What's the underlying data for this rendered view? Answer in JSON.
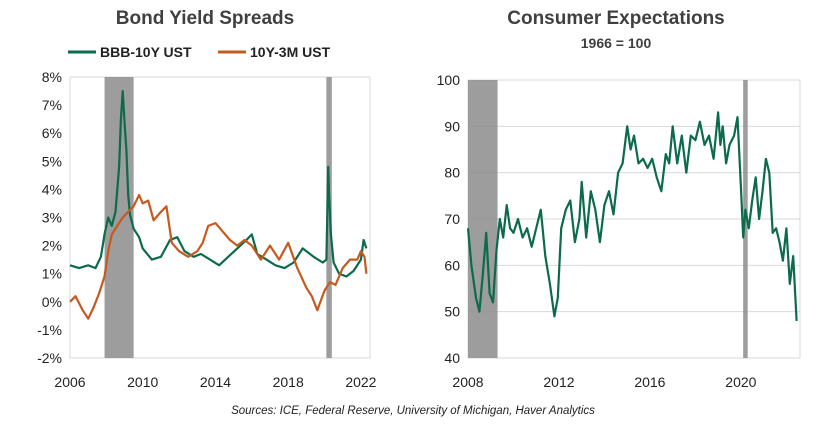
{
  "colors": {
    "bbb": "#0b6b4a",
    "spread": "#c65a1e",
    "consumer": "#0b6b4a",
    "recession": "#8c8c8c"
  },
  "source": "Sources: ICE, Federal Reserve, University of Michigan,  Haver Analytics",
  "chart_data": [
    {
      "type": "line",
      "title": "Bond Yield Spreads",
      "xlim": [
        2006,
        2022.5
      ],
      "ylim": [
        -2,
        8
      ],
      "x_ticks": [
        "2006",
        "2010",
        "2014",
        "2018",
        "2022"
      ],
      "y_ticks": [
        "8%",
        "7%",
        "6%",
        "5%",
        "4%",
        "3%",
        "2%",
        "1%",
        "0%",
        "-1%",
        "-2%"
      ],
      "y_tick_values": [
        8,
        7,
        6,
        5,
        4,
        3,
        2,
        1,
        0,
        -1,
        -2
      ],
      "x_tick_values": [
        2006,
        2010,
        2014,
        2018,
        2022
      ],
      "recessions": [
        [
          2007.9,
          2009.5
        ],
        [
          2020.1,
          2020.4
        ]
      ],
      "legend": "top",
      "series": [
        {
          "name": "BBB-10Y UST",
          "x": [
            2006.0,
            2006.5,
            2007.0,
            2007.4,
            2007.7,
            2007.9,
            2008.1,
            2008.3,
            2008.5,
            2008.7,
            2008.8,
            2008.9,
            2009.0,
            2009.1,
            2009.2,
            2009.3,
            2009.5,
            2009.8,
            2010.0,
            2010.5,
            2011.0,
            2011.5,
            2011.9,
            2012.3,
            2012.8,
            2013.2,
            2013.7,
            2014.2,
            2014.7,
            2015.2,
            2015.7,
            2016.0,
            2016.3,
            2016.8,
            2017.3,
            2017.8,
            2018.3,
            2018.8,
            2019.0,
            2019.4,
            2019.9,
            2020.1,
            2020.2,
            2020.25,
            2020.35,
            2020.5,
            2020.8,
            2021.2,
            2021.6,
            2022.0,
            2022.15,
            2022.3
          ],
          "y": [
            1.3,
            1.2,
            1.3,
            1.2,
            1.6,
            2.4,
            3.0,
            2.7,
            3.2,
            4.8,
            6.5,
            7.5,
            6.4,
            5.4,
            3.8,
            3.1,
            2.6,
            2.3,
            1.9,
            1.5,
            1.6,
            2.2,
            2.3,
            1.8,
            1.6,
            1.7,
            1.5,
            1.3,
            1.6,
            1.9,
            2.2,
            2.4,
            1.7,
            1.5,
            1.3,
            1.2,
            1.4,
            1.9,
            1.8,
            1.6,
            1.4,
            1.5,
            4.8,
            3.8,
            2.4,
            1.4,
            1.0,
            0.9,
            1.1,
            1.5,
            2.2,
            1.9
          ]
        },
        {
          "name": "10Y-3M UST",
          "x": [
            2006.0,
            2006.3,
            2006.7,
            2007.0,
            2007.3,
            2007.6,
            2007.9,
            2008.1,
            2008.3,
            2008.6,
            2008.9,
            2009.2,
            2009.5,
            2009.8,
            2010.0,
            2010.3,
            2010.6,
            2011.0,
            2011.3,
            2011.6,
            2012.0,
            2012.5,
            2013.0,
            2013.3,
            2013.6,
            2014.0,
            2014.4,
            2014.8,
            2015.2,
            2015.6,
            2016.0,
            2016.5,
            2017.0,
            2017.5,
            2018.0,
            2018.5,
            2019.0,
            2019.3,
            2019.6,
            2020.0,
            2020.3,
            2020.6,
            2021.0,
            2021.4,
            2021.8,
            2022.0,
            2022.2,
            2022.3
          ],
          "y": [
            0.0,
            0.2,
            -0.3,
            -0.6,
            -0.2,
            0.3,
            0.9,
            1.8,
            2.4,
            2.7,
            3.0,
            3.2,
            3.4,
            3.8,
            3.5,
            3.6,
            2.9,
            3.2,
            3.4,
            2.1,
            1.8,
            1.6,
            1.8,
            2.1,
            2.7,
            2.8,
            2.5,
            2.2,
            2.0,
            2.2,
            2.0,
            1.5,
            2.0,
            1.5,
            2.1,
            1.2,
            0.5,
            0.2,
            -0.3,
            0.4,
            0.7,
            0.6,
            1.2,
            1.5,
            1.5,
            1.8,
            1.6,
            1.0
          ]
        }
      ]
    },
    {
      "type": "line",
      "title": "Consumer Expectations",
      "subtitle": "1966 = 100",
      "xlim": [
        2008,
        2022.6
      ],
      "ylim": [
        40,
        100
      ],
      "x_ticks": [
        "2008",
        "2012",
        "2016",
        "2020"
      ],
      "x_tick_values": [
        2008,
        2012,
        2016,
        2020
      ],
      "y_ticks": [
        "100",
        "90",
        "80",
        "70",
        "60",
        "50",
        "40"
      ],
      "y_tick_values": [
        100,
        90,
        80,
        70,
        60,
        50,
        40
      ],
      "recessions": [
        [
          2008.0,
          2009.3
        ],
        [
          2020.1,
          2020.3
        ]
      ],
      "series": [
        {
          "name": "Consumer Expectations",
          "x": [
            2008.0,
            2008.15,
            2008.35,
            2008.5,
            2008.65,
            2008.8,
            2008.95,
            2009.1,
            2009.25,
            2009.4,
            2009.55,
            2009.7,
            2009.85,
            2010.0,
            2010.2,
            2010.4,
            2010.6,
            2010.8,
            2011.0,
            2011.2,
            2011.4,
            2011.6,
            2011.8,
            2011.95,
            2012.1,
            2012.3,
            2012.5,
            2012.7,
            2012.9,
            2013.0,
            2013.2,
            2013.4,
            2013.6,
            2013.8,
            2014.0,
            2014.2,
            2014.4,
            2014.6,
            2014.8,
            2015.0,
            2015.15,
            2015.3,
            2015.5,
            2015.7,
            2015.9,
            2016.1,
            2016.3,
            2016.5,
            2016.7,
            2016.85,
            2017.0,
            2017.2,
            2017.4,
            2017.6,
            2017.8,
            2018.0,
            2018.2,
            2018.4,
            2018.6,
            2018.8,
            2019.0,
            2019.1,
            2019.2,
            2019.35,
            2019.5,
            2019.7,
            2019.85,
            2020.0,
            2020.1,
            2020.2,
            2020.35,
            2020.5,
            2020.65,
            2020.8,
            2020.95,
            2021.1,
            2021.25,
            2021.4,
            2021.55,
            2021.7,
            2021.85,
            2022.0,
            2022.15,
            2022.3,
            2022.45
          ],
          "y": [
            68,
            60,
            53,
            50,
            58,
            67,
            54,
            52,
            63,
            70,
            66,
            73,
            68,
            67,
            70,
            66,
            68,
            64,
            68,
            72,
            62,
            56,
            49,
            53,
            68,
            72,
            74,
            65,
            70,
            78,
            66,
            76,
            72,
            65,
            73,
            76,
            71,
            80,
            82,
            90,
            85,
            88,
            82,
            83,
            81,
            83,
            79,
            76,
            84,
            82,
            90,
            82,
            88,
            80,
            88,
            87,
            91,
            86,
            88,
            83,
            93,
            86,
            90,
            82,
            86,
            88,
            92,
            77,
            66,
            72,
            68,
            74,
            79,
            70,
            76,
            83,
            80,
            67,
            68,
            65,
            61,
            68,
            56,
            62,
            48
          ]
        }
      ]
    }
  ]
}
